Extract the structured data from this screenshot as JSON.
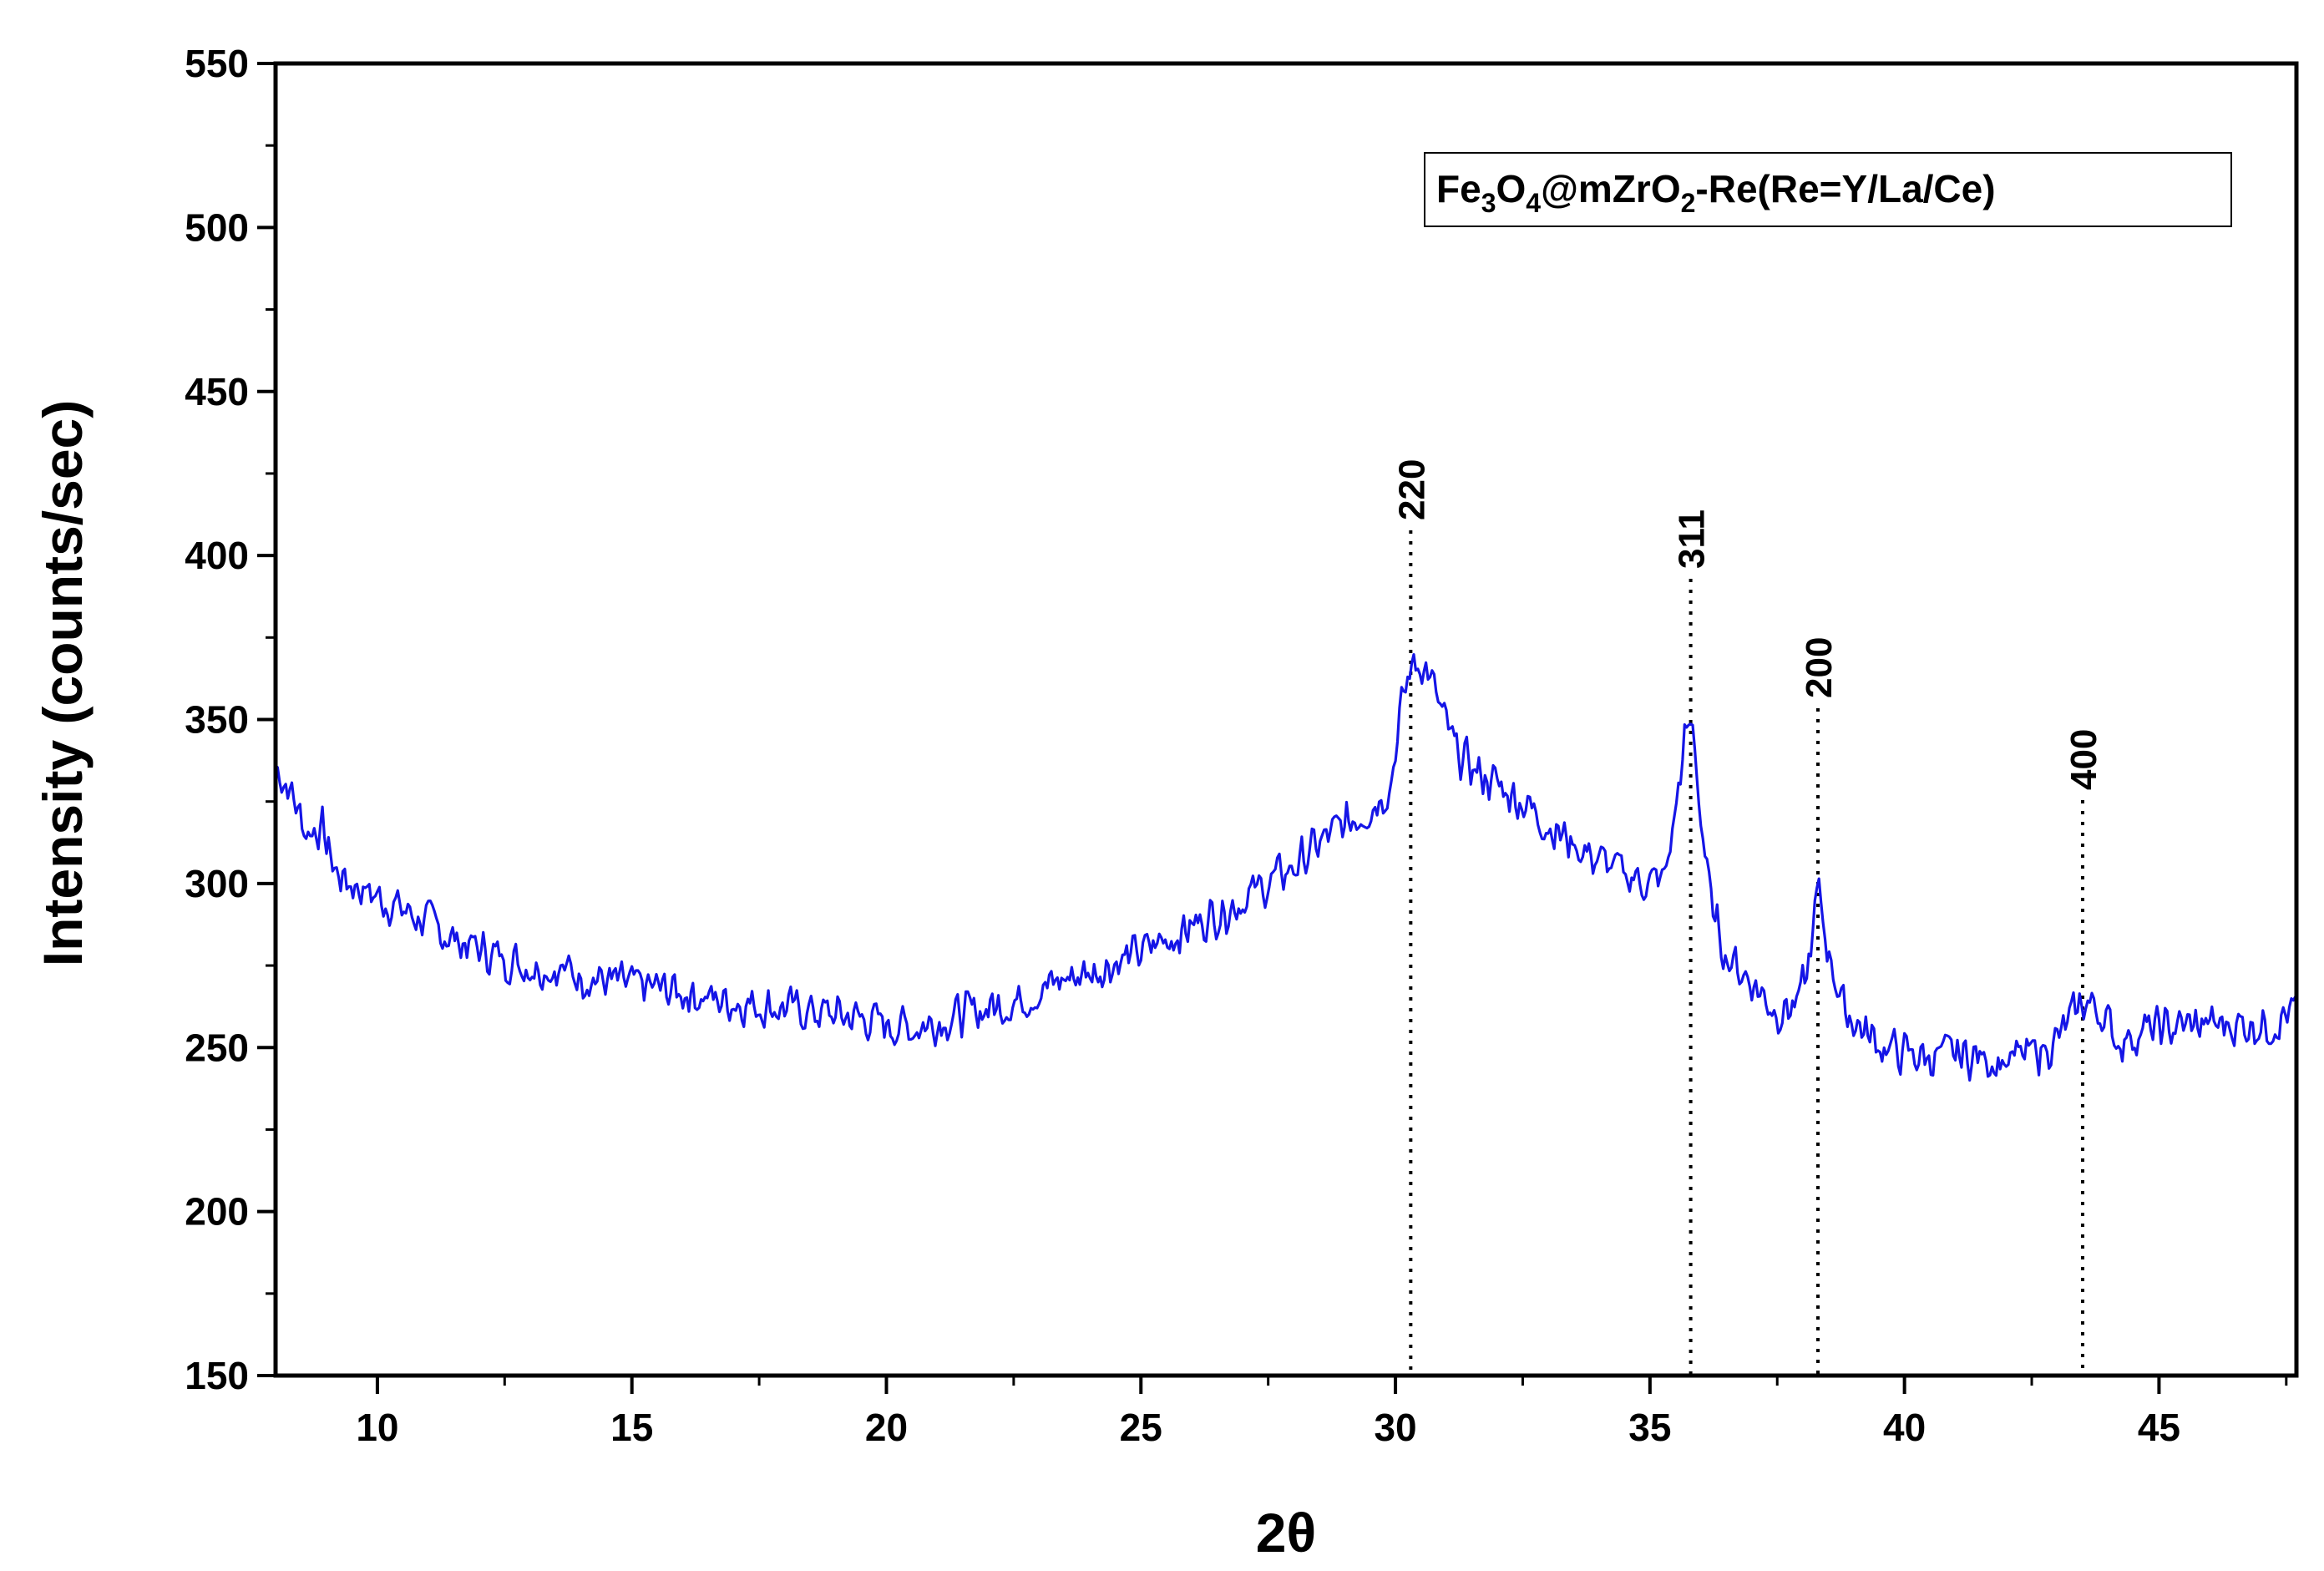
{
  "chart_data": {
    "type": "line",
    "title": "",
    "xlabel": "2θ",
    "ylabel": "Intensity (counts/sec)",
    "xlim": [
      8,
      47.7
    ],
    "ylim": [
      150,
      550
    ],
    "x_ticks": [
      10,
      15,
      20,
      25,
      30,
      35,
      40,
      45
    ],
    "y_ticks": [
      150,
      200,
      250,
      300,
      350,
      400,
      450,
      500,
      550
    ],
    "grid": false,
    "legend": {
      "placement": "top-right",
      "parts": [
        {
          "text": "Fe",
          "sub": false
        },
        {
          "text": "3",
          "sub": true
        },
        {
          "text": "O",
          "sub": false
        },
        {
          "text": "4",
          "sub": true
        },
        {
          "text": "@mZrO",
          "sub": false
        },
        {
          "text": "2",
          "sub": true
        },
        {
          "text": "-Re(Re=Y/La/Ce)",
          "sub": false
        }
      ]
    },
    "line_color": "#1515e6",
    "peak_line_color": "#000000",
    "peaks": [
      {
        "label": "220",
        "x": 30.3
      },
      {
        "label": "311",
        "x": 35.8
      },
      {
        "label": "200",
        "x": 38.3
      },
      {
        "label": "400",
        "x": 43.5
      }
    ],
    "series": [
      {
        "color": "#1515e6",
        "points": [
          [
            8.0,
            336
          ],
          [
            8.3,
            328
          ],
          [
            8.6,
            316
          ],
          [
            8.9,
            317
          ],
          [
            9.2,
            303
          ],
          [
            9.5,
            300
          ],
          [
            10.0,
            296
          ],
          [
            10.5,
            292
          ],
          [
            11.0,
            288
          ],
          [
            11.5,
            283
          ],
          [
            12.0,
            280
          ],
          [
            12.5,
            277
          ],
          [
            13.0,
            275
          ],
          [
            13.5,
            274
          ],
          [
            14.0,
            272
          ],
          [
            14.5,
            270
          ],
          [
            15.0,
            269
          ],
          [
            15.5,
            268
          ],
          [
            16.0,
            267
          ],
          [
            16.5,
            265
          ],
          [
            17.0,
            264
          ],
          [
            17.5,
            263
          ],
          [
            18.0,
            262
          ],
          [
            18.5,
            261
          ],
          [
            19.0,
            260
          ],
          [
            19.5,
            259
          ],
          [
            20.0,
            257
          ],
          [
            20.5,
            256
          ],
          [
            21.0,
            258
          ],
          [
            21.5,
            260
          ],
          [
            22.0,
            262
          ],
          [
            22.5,
            264
          ],
          [
            23.0,
            267
          ],
          [
            23.5,
            271
          ],
          [
            24.0,
            273
          ],
          [
            24.5,
            276
          ],
          [
            25.0,
            279
          ],
          [
            25.5,
            283
          ],
          [
            26.0,
            287
          ],
          [
            26.5,
            291
          ],
          [
            27.0,
            295
          ],
          [
            27.5,
            300
          ],
          [
            28.0,
            305
          ],
          [
            28.5,
            312
          ],
          [
            29.0,
            318
          ],
          [
            29.5,
            323
          ],
          [
            29.9,
            330
          ],
          [
            30.1,
            352
          ],
          [
            30.3,
            366
          ],
          [
            30.5,
            368
          ],
          [
            30.7,
            362
          ],
          [
            30.9,
            352
          ],
          [
            31.2,
            340
          ],
          [
            31.6,
            334
          ],
          [
            32.0,
            330
          ],
          [
            32.5,
            325
          ],
          [
            33.0,
            318
          ],
          [
            33.5,
            312
          ],
          [
            34.0,
            307
          ],
          [
            34.5,
            303
          ],
          [
            35.0,
            300
          ],
          [
            35.3,
            302
          ],
          [
            35.5,
            322
          ],
          [
            35.7,
            345
          ],
          [
            35.85,
            348
          ],
          [
            36.0,
            320
          ],
          [
            36.2,
            293
          ],
          [
            36.5,
            278
          ],
          [
            37.0,
            270
          ],
          [
            37.5,
            261
          ],
          [
            37.9,
            263
          ],
          [
            38.1,
            273
          ],
          [
            38.3,
            298
          ],
          [
            38.5,
            280
          ],
          [
            38.8,
            262
          ],
          [
            39.2,
            255
          ],
          [
            39.6,
            250
          ],
          [
            40.0,
            248
          ],
          [
            40.5,
            247
          ],
          [
            41.0,
            248
          ],
          [
            41.5,
            247
          ],
          [
            42.0,
            246
          ],
          [
            42.5,
            248
          ],
          [
            43.0,
            252
          ],
          [
            43.5,
            264
          ],
          [
            43.8,
            262
          ],
          [
            44.2,
            252
          ],
          [
            44.7,
            255
          ],
          [
            45.2,
            256
          ],
          [
            45.7,
            257
          ],
          [
            46.2,
            257
          ],
          [
            46.7,
            257
          ],
          [
            47.2,
            257
          ],
          [
            47.7,
            262
          ]
        ]
      }
    ]
  }
}
